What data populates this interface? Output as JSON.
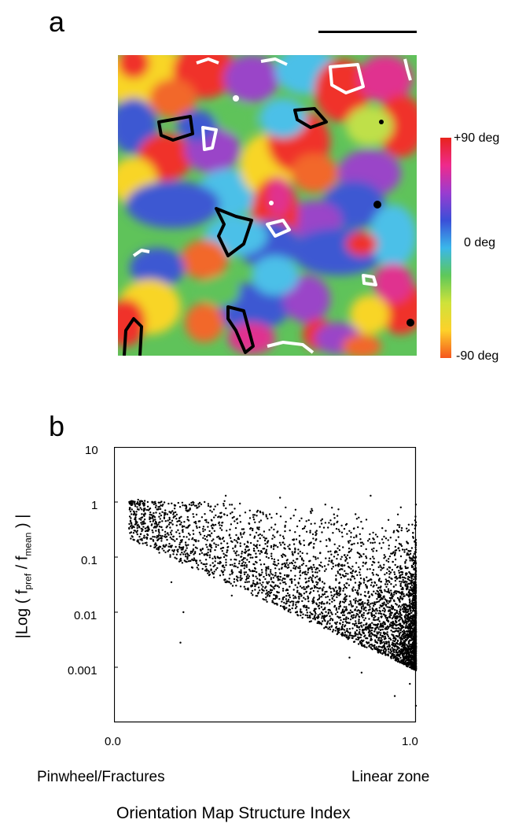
{
  "figure": {
    "panel_a": {
      "label": "a",
      "colorbar": {
        "top_label": "+90 deg",
        "mid_label": "0 deg",
        "bottom_label": "-90 deg",
        "colors": [
          "#e8231c",
          "#ef2a8c",
          "#9a3cd0",
          "#3a4fd8",
          "#3ab7ea",
          "#5ec85a",
          "#cfe23a",
          "#fdd12a",
          "#f5561e"
        ]
      },
      "map_colors": {
        "red": "#f0302a",
        "magenta": "#e0308f",
        "purple": "#9a45c8",
        "blue": "#3d58d2",
        "cyan": "#4cc0e8",
        "green": "#5fc35a",
        "lime": "#bfe048",
        "yellow": "#f8d528",
        "orange": "#f2682a"
      }
    },
    "panel_b": {
      "label": "b"
    }
  },
  "chart_data": {
    "type": "scatter",
    "title": "",
    "xlabel": "Orientation Map Structure Index",
    "ylabel": "|Log ( f_pref / f_mean ) |",
    "ylabel_parts": {
      "prefix": "|Log ( f",
      "sub1": "pref",
      "mid": " / f",
      "sub2": "mean",
      "suffix": " ) |"
    },
    "xlim": [
      0.0,
      1.0
    ],
    "ylim": [
      0.0001,
      10
    ],
    "yscale": "log",
    "x_ticks": [
      "0.0",
      "1.0"
    ],
    "y_ticks": [
      "10",
      "1",
      "0.1",
      "0.01",
      "0.001"
    ],
    "x_annotations": {
      "left": "Pinwheel/Fractures",
      "right": "Linear zone"
    },
    "point_color": "#000000",
    "series": [
      {
        "points_sample": [
          [
            0.07,
            0.3
          ],
          [
            0.08,
            1.1
          ],
          [
            0.15,
            0.12
          ],
          [
            0.17,
            0.6
          ],
          [
            0.19,
            0.035
          ],
          [
            0.22,
            0.0028
          ],
          [
            0.23,
            0.01
          ],
          [
            0.25,
            0.9
          ],
          [
            0.3,
            1.0
          ],
          [
            0.33,
            0.05
          ],
          [
            0.37,
            1.3
          ],
          [
            0.39,
            0.02
          ],
          [
            0.45,
            0.7
          ],
          [
            0.5,
            0.2
          ],
          [
            0.55,
            1.2
          ],
          [
            0.6,
            0.08
          ],
          [
            0.65,
            0.3
          ],
          [
            0.7,
            0.9
          ],
          [
            0.74,
            0.01
          ],
          [
            0.78,
            0.0015
          ],
          [
            0.8,
            0.6
          ],
          [
            0.82,
            0.0008
          ],
          [
            0.85,
            1.3
          ],
          [
            0.9,
            0.3
          ],
          [
            0.93,
            0.0003
          ],
          [
            0.95,
            0.8
          ],
          [
            0.97,
            0.05
          ],
          [
            0.98,
            0.0005
          ],
          [
            1.0,
            0.9
          ],
          [
            1.0,
            0.0002
          ]
        ]
      }
    ]
  }
}
